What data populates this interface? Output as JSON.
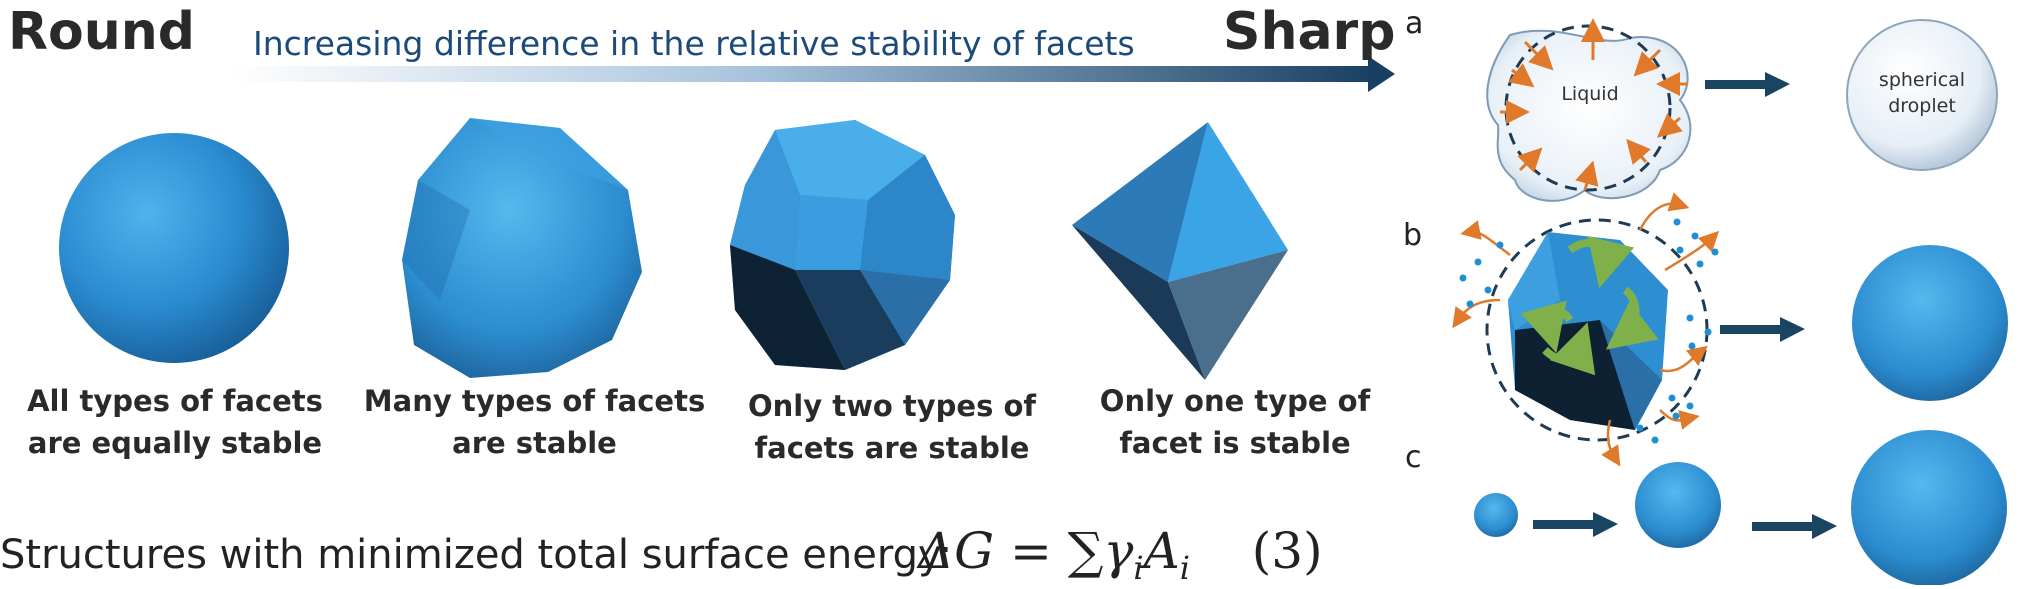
{
  "header": {
    "left_label": "Round",
    "right_label": "Sharp",
    "arrow_text": "Increasing difference in the relative stability of facets"
  },
  "shapes": [
    {
      "caption_line1": "All types of facets",
      "caption_line2": "are equally stable"
    },
    {
      "caption_line1": "Many types of facets",
      "caption_line2": "are stable"
    },
    {
      "caption_line1": "Only two types of",
      "caption_line2": "facets are stable"
    },
    {
      "caption_line1": "Only one type of",
      "caption_line2": "facet is stable"
    }
  ],
  "footer": {
    "text": "Structures with minimized total surface energy:",
    "equation": {
      "lhs": "ΔG",
      "equals": "=",
      "sum": "∑",
      "gamma": "γ",
      "sub_i1": "i",
      "area": "A",
      "sub_i2": "i",
      "number": "(3)"
    }
  },
  "panels": {
    "a": {
      "letter": "a",
      "liquid_label": "Liquid",
      "droplet_line1": "spherical",
      "droplet_line2": "droplet"
    },
    "b": {
      "letter": "b"
    },
    "c": {
      "letter": "c"
    }
  },
  "colors": {
    "crystal_blue": "#2f8fd0",
    "crystal_dark": "#0f2b44",
    "arrow_navy": "#1a4560",
    "orange": "#e07a2a",
    "green": "#7fb04a",
    "dots": "#1e8fd6"
  }
}
